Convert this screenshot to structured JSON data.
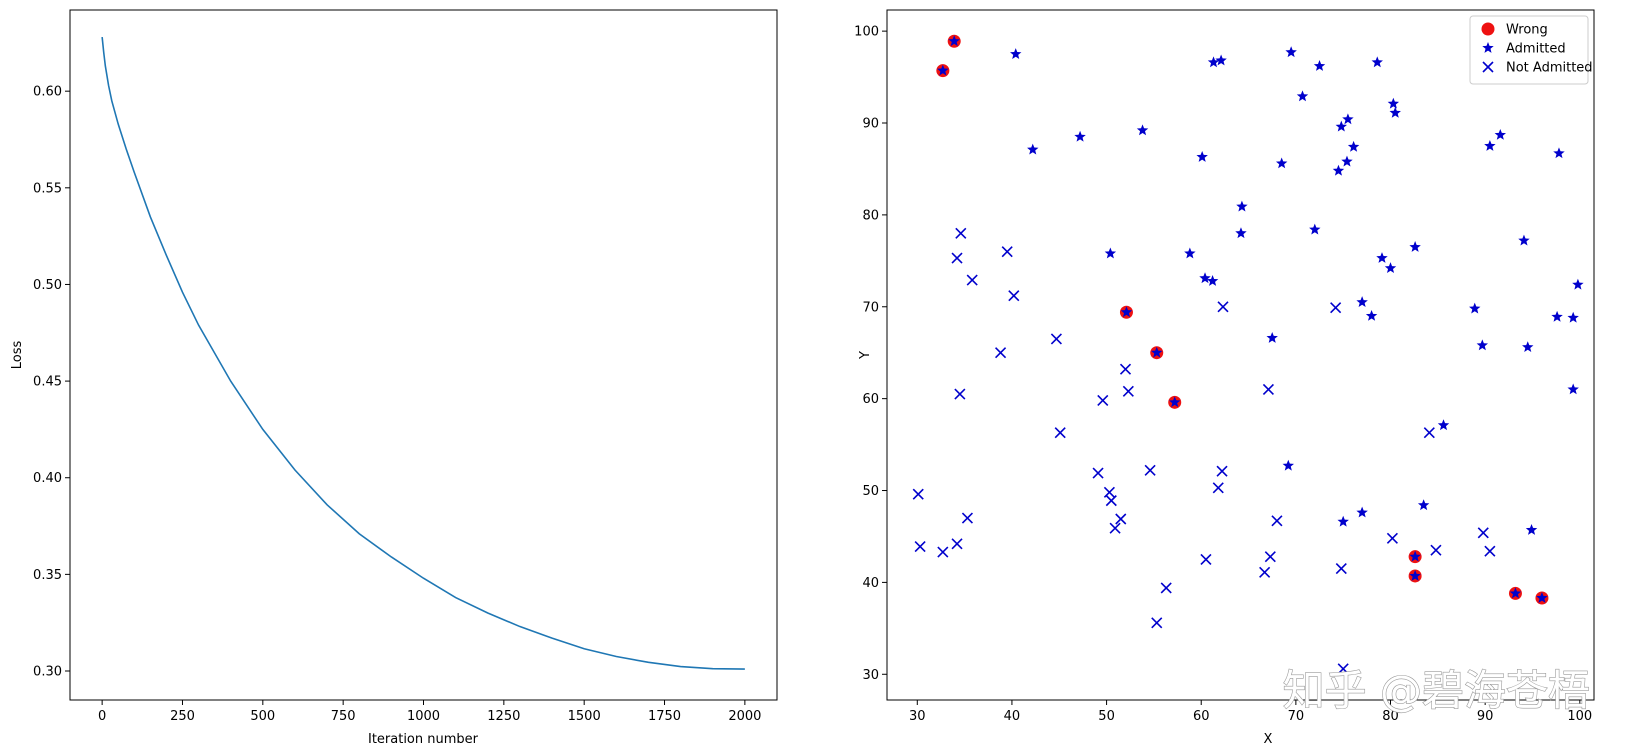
{
  "watermark": "知乎 @碧海苍梧",
  "chart_data": [
    {
      "type": "line",
      "title": "",
      "xlabel": "Iteration number",
      "ylabel": "Loss",
      "xlim": [
        -100,
        2100
      ],
      "ylim": [
        0.285,
        0.642
      ],
      "xticks": [
        0,
        250,
        500,
        750,
        1000,
        1250,
        1500,
        1750,
        2000
      ],
      "xtick_labels": [
        "0",
        "250",
        "500",
        "750",
        "1000",
        "1250",
        "1500",
        "1750",
        "2000"
      ],
      "yticks": [
        0.3,
        0.35,
        0.4,
        0.45,
        0.5,
        0.55,
        0.6
      ],
      "ytick_labels": [
        "0.30",
        "0.35",
        "0.40",
        "0.45",
        "0.50",
        "0.55",
        "0.60"
      ],
      "grid": false,
      "color": "#1f77b4",
      "series": [
        {
          "x": [
            0,
            5,
            10,
            20,
            30,
            50,
            75,
            100,
            150,
            200,
            250,
            300,
            400,
            500,
            600,
            700,
            800,
            900,
            1000,
            1100,
            1200,
            1300,
            1400,
            1500,
            1600,
            1700,
            1800,
            1900,
            2000
          ],
          "values": [
            0.628,
            0.62,
            0.613,
            0.603,
            0.595,
            0.583,
            0.57,
            0.558,
            0.535,
            0.515,
            0.496,
            0.479,
            0.45,
            0.425,
            0.404,
            0.386,
            0.371,
            0.359,
            0.348,
            0.338,
            0.33,
            0.323,
            0.317,
            0.3115,
            0.3075,
            0.3045,
            0.3023,
            0.3012,
            0.301
          ]
        }
      ]
    },
    {
      "type": "scatter",
      "title": "",
      "xlabel": "X",
      "ylabel": "Y",
      "xlim": [
        26.8,
        101.5
      ],
      "ylim": [
        27.2,
        102.3
      ],
      "xticks": [
        30,
        40,
        50,
        60,
        70,
        80,
        90,
        100
      ],
      "xtick_labels": [
        "30",
        "40",
        "50",
        "60",
        "70",
        "80",
        "90",
        "100"
      ],
      "yticks": [
        30,
        40,
        50,
        60,
        70,
        80,
        90,
        100
      ],
      "ytick_labels": [
        "30",
        "40",
        "50",
        "60",
        "70",
        "80",
        "90",
        "100"
      ],
      "grid": false,
      "legend_position": "top-right",
      "series": [
        {
          "name": "Wrong",
          "marker": "circle",
          "color": "#ee1111",
          "points": [
            [
              32.7,
              95.7
            ],
            [
              33.9,
              98.9
            ],
            [
              52.1,
              69.4
            ],
            [
              55.3,
              65.0
            ],
            [
              57.2,
              59.6
            ],
            [
              82.6,
              42.8
            ],
            [
              82.6,
              40.7
            ],
            [
              93.2,
              38.8
            ],
            [
              96.0,
              38.3
            ]
          ]
        },
        {
          "name": "Admitted",
          "marker": "star",
          "color": "#0000cc",
          "points": [
            [
              32.7,
              95.7
            ],
            [
              33.9,
              98.9
            ],
            [
              40.4,
              97.5
            ],
            [
              42.2,
              87.1
            ],
            [
              47.2,
              88.5
            ],
            [
              50.4,
              75.8
            ],
            [
              52.1,
              69.4
            ],
            [
              53.8,
              89.2
            ],
            [
              55.3,
              65.0
            ],
            [
              57.2,
              59.6
            ],
            [
              58.8,
              75.8
            ],
            [
              60.1,
              86.3
            ],
            [
              60.4,
              73.1
            ],
            [
              61.2,
              72.8
            ],
            [
              61.3,
              96.6
            ],
            [
              62.1,
              96.8
            ],
            [
              64.2,
              78.0
            ],
            [
              64.3,
              80.9
            ],
            [
              67.5,
              66.6
            ],
            [
              68.5,
              85.6
            ],
            [
              69.2,
              52.7
            ],
            [
              69.5,
              97.7
            ],
            [
              70.7,
              92.9
            ],
            [
              72.0,
              78.4
            ],
            [
              72.5,
              96.2
            ],
            [
              74.5,
              84.8
            ],
            [
              74.8,
              89.6
            ],
            [
              75.0,
              46.6
            ],
            [
              75.4,
              85.8
            ],
            [
              75.5,
              90.4
            ],
            [
              76.1,
              87.4
            ],
            [
              77.0,
              47.6
            ],
            [
              77.0,
              70.5
            ],
            [
              78.0,
              69.0
            ],
            [
              78.6,
              96.6
            ],
            [
              79.1,
              75.3
            ],
            [
              80.0,
              74.2
            ],
            [
              80.3,
              92.1
            ],
            [
              80.5,
              91.1
            ],
            [
              82.6,
              76.5
            ],
            [
              82.6,
              42.8
            ],
            [
              82.6,
              40.7
            ],
            [
              83.5,
              48.4
            ],
            [
              85.6,
              57.1
            ],
            [
              88.9,
              69.8
            ],
            [
              89.7,
              65.8
            ],
            [
              90.5,
              87.5
            ],
            [
              91.6,
              88.7
            ],
            [
              93.2,
              38.8
            ],
            [
              94.1,
              77.2
            ],
            [
              94.5,
              65.6
            ],
            [
              94.9,
              45.7
            ],
            [
              96.0,
              38.3
            ],
            [
              97.6,
              68.9
            ],
            [
              97.8,
              86.7
            ],
            [
              99.3,
              68.8
            ],
            [
              99.3,
              61.0
            ],
            [
              99.8,
              72.4
            ]
          ]
        },
        {
          "name": "Not Admitted",
          "marker": "x",
          "color": "#0000cc",
          "points": [
            [
              30.1,
              49.6
            ],
            [
              30.3,
              43.9
            ],
            [
              32.7,
              43.3
            ],
            [
              34.2,
              44.2
            ],
            [
              34.2,
              75.3
            ],
            [
              34.5,
              60.5
            ],
            [
              34.6,
              78.0
            ],
            [
              35.3,
              47.0
            ],
            [
              35.8,
              72.9
            ],
            [
              38.8,
              65.0
            ],
            [
              39.5,
              76.0
            ],
            [
              40.2,
              71.2
            ],
            [
              44.7,
              66.5
            ],
            [
              45.1,
              56.3
            ],
            [
              49.1,
              51.9
            ],
            [
              49.6,
              59.8
            ],
            [
              50.3,
              49.8
            ],
            [
              50.5,
              48.9
            ],
            [
              50.9,
              45.9
            ],
            [
              51.5,
              46.9
            ],
            [
              52.0,
              63.2
            ],
            [
              52.3,
              60.8
            ],
            [
              54.6,
              52.2
            ],
            [
              55.3,
              35.6
            ],
            [
              56.3,
              39.4
            ],
            [
              60.5,
              42.5
            ],
            [
              61.8,
              50.3
            ],
            [
              62.2,
              52.1
            ],
            [
              62.3,
              70.0
            ],
            [
              66.7,
              41.1
            ],
            [
              67.1,
              61.0
            ],
            [
              67.3,
              42.8
            ],
            [
              68.0,
              46.7
            ],
            [
              74.2,
              69.9
            ],
            [
              74.8,
              41.5
            ],
            [
              75.0,
              30.6
            ],
            [
              80.2,
              44.8
            ],
            [
              84.1,
              56.3
            ],
            [
              84.8,
              43.5
            ],
            [
              89.8,
              45.4
            ],
            [
              90.5,
              43.4
            ]
          ]
        }
      ]
    }
  ]
}
